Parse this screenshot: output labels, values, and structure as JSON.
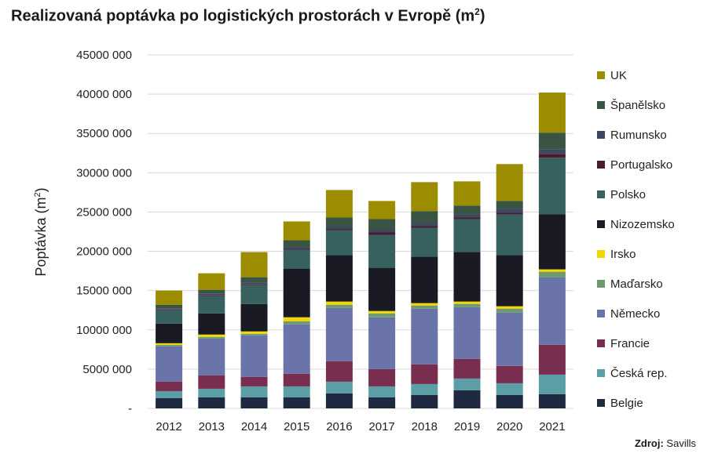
{
  "chart_data": {
    "type": "bar",
    "stacked": true,
    "title": "Realizovaná poptávka po logistických prostorách v Evropě (m",
    "title_superscript": "2",
    "title_end": ")",
    "ylabel": "Poptávka (m",
    "ylabel_superscript": "2",
    "ylabel_end": ")",
    "xlabel": "",
    "ylim": [
      0,
      45000000
    ],
    "yticks": [
      0,
      5000000,
      10000000,
      15000000,
      20000000,
      25000000,
      30000000,
      35000000,
      40000000,
      45000000
    ],
    "ytick_labels": [
      "-",
      "5000 000",
      "10000 000",
      "15000 000",
      "20000 000",
      "25000 000",
      "30000 000",
      "35000 000",
      "40000 000",
      "45000 000"
    ],
    "grid": true,
    "legend_position": "right",
    "categories": [
      "2012",
      "2013",
      "2014",
      "2015",
      "2016",
      "2017",
      "2018",
      "2019",
      "2020",
      "2021"
    ],
    "series": [
      {
        "name": "Belgie",
        "color": "#1f2940",
        "values": [
          1300000,
          1400000,
          1400000,
          1400000,
          1900000,
          1400000,
          1700000,
          2300000,
          1700000,
          1800000
        ]
      },
      {
        "name": "Česká rep.",
        "color": "#5b9ea6",
        "values": [
          900000,
          1100000,
          1400000,
          1400000,
          1500000,
          1400000,
          1400000,
          1500000,
          1500000,
          2500000
        ]
      },
      {
        "name": "Francie",
        "color": "#7a2e4f",
        "values": [
          1200000,
          1700000,
          1200000,
          1600000,
          2600000,
          2200000,
          2500000,
          2500000,
          2200000,
          3800000
        ]
      },
      {
        "name": "Německo",
        "color": "#6b74a8",
        "values": [
          4500000,
          4700000,
          5300000,
          6300000,
          6800000,
          6600000,
          7100000,
          6600000,
          6800000,
          8600000
        ]
      },
      {
        "name": "Maďarsko",
        "color": "#6e9a6e",
        "values": [
          200000,
          200000,
          200000,
          400000,
          400000,
          500000,
          400000,
          400000,
          500000,
          700000
        ]
      },
      {
        "name": "Irsko",
        "color": "#f2d600",
        "values": [
          200000,
          300000,
          300000,
          500000,
          400000,
          300000,
          300000,
          300000,
          300000,
          300000
        ]
      },
      {
        "name": "Nizozemsko",
        "color": "#1a1a24",
        "values": [
          2500000,
          2700000,
          3500000,
          6200000,
          5900000,
          5500000,
          5900000,
          6300000,
          6500000,
          7000000
        ]
      },
      {
        "name": "Polsko",
        "color": "#36615f",
        "values": [
          1700000,
          2200000,
          2400000,
          2400000,
          3200000,
          4200000,
          3700000,
          4200000,
          5200000,
          7200000
        ]
      },
      {
        "name": "Portugalsko",
        "color": "#4a1c2c",
        "values": [
          100000,
          100000,
          100000,
          100000,
          100000,
          300000,
          200000,
          200000,
          200000,
          500000
        ]
      },
      {
        "name": "Rumunsko",
        "color": "#3f4563",
        "values": [
          100000,
          200000,
          200000,
          200000,
          300000,
          300000,
          300000,
          400000,
          500000,
          600000
        ]
      },
      {
        "name": "Španělsko",
        "color": "#3a5444",
        "values": [
          500000,
          500000,
          700000,
          900000,
          1200000,
          1400000,
          1600000,
          1100000,
          1000000,
          2100000
        ]
      },
      {
        "name": "UK",
        "color": "#9c8c00",
        "values": [
          1800000,
          2100000,
          3200000,
          2400000,
          3500000,
          2300000,
          3700000,
          3100000,
          4700000,
          5100000
        ]
      }
    ]
  },
  "source": {
    "label": "Zdroj:",
    "value": "Savills"
  }
}
